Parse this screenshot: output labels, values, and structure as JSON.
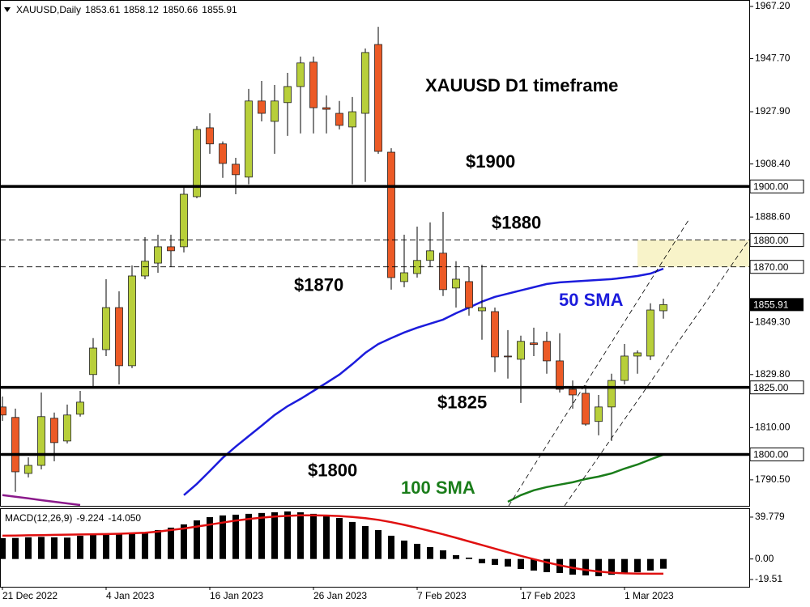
{
  "chart_data": [
    {
      "type": "candlestick",
      "symbol": "XAUUSD,Daily",
      "title": "XAUUSD D1 timeframe",
      "categories": [
        "21 Dec 2022",
        null,
        null,
        null,
        null,
        null,
        null,
        null,
        "4 Jan 2023",
        null,
        null,
        null,
        null,
        null,
        null,
        null,
        "16 Jan 2023",
        null,
        null,
        null,
        null,
        null,
        null,
        null,
        "26 Jan 2023",
        null,
        null,
        null,
        null,
        null,
        null,
        null,
        "7 Feb 2023",
        null,
        null,
        null,
        null,
        null,
        null,
        null,
        "17 Feb 2023",
        null,
        null,
        null,
        null,
        null,
        null,
        null,
        "1 Mar 2023",
        null,
        null,
        null
      ],
      "open": [
        1817.7,
        1813.8,
        1792.9,
        1795.9,
        1813.5,
        1805.0,
        1815.0,
        1829.8,
        1839.1,
        1854.8,
        1833.1,
        1866.6,
        1871.4,
        1877.5,
        1877.5,
        1896.2,
        1921.9,
        1915.9,
        1908.3,
        1903.5,
        1931.9,
        1924.3,
        1931.3,
        1937.3,
        1946.4,
        1929.4,
        1927.3,
        1922.2,
        1927.3,
        1953.0,
        1912.8,
        1864.5,
        1867.5,
        1872.4,
        1875.1,
        1862.1,
        1864.5,
        1853.6,
        1853.3,
        1836.7,
        1835.5,
        1841.6,
        1842.2,
        1834.9,
        1824.3,
        1822.8,
        1812.3,
        1817.7,
        1827.6,
        1836.7,
        1836.7,
        1853.61
      ],
      "high": [
        1821.6,
        1817.1,
        1798.9,
        1823.1,
        1815.6,
        1818.6,
        1823.7,
        1843.4,
        1865.4,
        1860.9,
        1870.5,
        1881.1,
        1882.0,
        1882.0,
        1900.1,
        1922.5,
        1927.3,
        1916.8,
        1910.7,
        1936.4,
        1939.4,
        1937.9,
        1942.4,
        1948.5,
        1948.5,
        1934.0,
        1931.9,
        1933.4,
        1951.5,
        1959.6,
        1914.3,
        1882.0,
        1885.0,
        1886.6,
        1890.5,
        1872.1,
        1869.9,
        1870.8,
        1854.8,
        1846.4,
        1844.3,
        1847.3,
        1845.8,
        1845.2,
        1827.6,
        1825.8,
        1822.2,
        1830.1,
        1841.2,
        1838.8,
        1856.4,
        1858.12
      ],
      "low": [
        1812.5,
        1786.0,
        1791.4,
        1794.4,
        1797.4,
        1804.1,
        1814.1,
        1825.2,
        1836.7,
        1826.1,
        1832.2,
        1865.4,
        1867.8,
        1869.9,
        1875.4,
        1895.6,
        1912.2,
        1903.2,
        1897.1,
        1900.8,
        1924.3,
        1912.2,
        1918.9,
        1919.8,
        1919.8,
        1919.8,
        1921.3,
        1900.8,
        1901.7,
        1912.2,
        1861.5,
        1862.4,
        1866.0,
        1869.9,
        1859.1,
        1854.8,
        1851.8,
        1842.8,
        1830.7,
        1828.3,
        1819.2,
        1836.7,
        1830.1,
        1823.1,
        1817.1,
        1810.7,
        1807.1,
        1805.0,
        1826.1,
        1830.1,
        1835.2,
        1850.66
      ],
      "close": [
        1814.7,
        1793.5,
        1795.9,
        1814.1,
        1804.4,
        1814.7,
        1819.5,
        1839.7,
        1854.8,
        1833.1,
        1866.6,
        1872.1,
        1877.5,
        1876.0,
        1897.1,
        1921.3,
        1915.9,
        1908.6,
        1904.4,
        1931.9,
        1927.3,
        1931.9,
        1937.3,
        1946.1,
        1929.4,
        1928.8,
        1922.8,
        1927.9,
        1950.0,
        1913.1,
        1866.0,
        1867.8,
        1872.4,
        1876.0,
        1861.5,
        1865.4,
        1854.8,
        1854.8,
        1836.4,
        1836.4,
        1842.2,
        1841.0,
        1834.9,
        1824.3,
        1822.2,
        1811.3,
        1817.7,
        1827.6,
        1836.7,
        1837.9,
        1853.9,
        1855.91
      ],
      "up_color": "#b8cf3a",
      "down_color": "#ec5a26",
      "lines": [
        {
          "name": "50 SMA",
          "color": "#1c1cdc",
          "values": [
            null,
            null,
            null,
            null,
            null,
            null,
            null,
            null,
            null,
            null,
            null,
            null,
            null,
            null,
            1784.8,
            1789.0,
            1793.8,
            1798.7,
            1802.9,
            1806.8,
            1810.7,
            1814.7,
            1818.0,
            1820.7,
            1823.7,
            1826.7,
            1829.8,
            1833.7,
            1837.9,
            1841.2,
            1843.4,
            1845.5,
            1847.3,
            1848.8,
            1850.3,
            1852.7,
            1854.8,
            1857.0,
            1858.8,
            1860.0,
            1861.2,
            1862.4,
            1863.6,
            1864.2,
            1864.5,
            1864.8,
            1865.1,
            1865.4,
            1866.0,
            1866.6,
            1867.5,
            1869.3
          ]
        },
        {
          "name": "100 SMA",
          "color": "#1a7d1a",
          "values": [
            null,
            null,
            null,
            null,
            null,
            null,
            null,
            null,
            null,
            null,
            null,
            null,
            null,
            null,
            null,
            null,
            null,
            null,
            null,
            null,
            null,
            null,
            null,
            null,
            null,
            null,
            null,
            null,
            null,
            null,
            null,
            null,
            null,
            null,
            null,
            null,
            null,
            null,
            null,
            1782.3,
            1784.8,
            1786.6,
            1787.8,
            1788.7,
            1789.6,
            1790.8,
            1791.7,
            1792.9,
            1794.7,
            1796.2,
            1798.1,
            1799.9
          ]
        },
        {
          "color": "#8b1a8b",
          "values": [
            1784.8,
            1784.2,
            1783.6,
            1782.9,
            1782.3,
            1781.7,
            1781.1,
            null,
            null,
            null,
            null,
            null,
            null,
            null,
            null,
            null,
            null,
            null,
            null,
            null,
            null,
            null,
            null,
            null,
            null,
            null,
            null,
            null,
            null,
            null,
            null,
            null,
            null,
            null,
            null,
            null,
            null,
            null,
            null,
            null,
            null,
            null,
            null,
            null,
            null,
            null,
            null,
            null,
            null,
            null,
            null,
            null
          ]
        }
      ],
      "levels": [
        {
          "value": 1900,
          "label": "$1900",
          "axis_label": "1900.00",
          "style": "solid"
        },
        {
          "value": 1880,
          "label": "$1880",
          "axis_label": "1880.00",
          "style": "dashed"
        },
        {
          "value": 1870,
          "label": "$1870",
          "axis_label": "1870.00",
          "style": "dashed"
        },
        {
          "value": 1825,
          "label": "$1825",
          "axis_label": "1825.00",
          "style": "solid"
        },
        {
          "value": 1800,
          "label": "$1800",
          "axis_label": "1800.00",
          "style": "solid"
        }
      ],
      "zone_color": "#f8f3c9",
      "ylim": [
        1780.8,
        1969.6
      ],
      "yticks": [
        {
          "value": 1967.2,
          "label": "1967.20"
        },
        {
          "value": 1947.7,
          "label": "1947.70"
        },
        {
          "value": 1927.9,
          "label": "1927.90"
        },
        {
          "value": 1908.4,
          "label": "1908.40"
        },
        {
          "value": 1888.6,
          "label": "1888.60"
        },
        {
          "value": 1849.3,
          "label": "1849.30"
        },
        {
          "value": 1829.8,
          "label": "1829.80"
        },
        {
          "value": 1810,
          "label": "1810.00"
        },
        {
          "value": 1790.5,
          "label": "1790.50"
        }
      ]
    },
    {
      "type": "macd",
      "title": "MACD(12,26,9)",
      "color": "#000000",
      "values": [
        19.8,
        20.0,
        20.6,
        21.0,
        20.6,
        20.3,
        22.1,
        22.9,
        23.6,
        23.6,
        23.6,
        24.4,
        27.5,
        29.8,
        32.9,
        36.7,
        39.8,
        41.4,
        42.1,
        42.9,
        43.7,
        44.4,
        45.2,
        44.4,
        42.9,
        41.4,
        39.0,
        35.2,
        31.3,
        27.5,
        22.1,
        17.5,
        14.4,
        11.3,
        8.2,
        3.6,
        1.3,
        -4.1,
        -5.6,
        -7.2,
        -9.5,
        -11.0,
        -12.5,
        -13.3,
        -14.9,
        -15.6,
        -16.4,
        -15.0,
        -14.0,
        -12.6,
        -11.0,
        -9.224
      ],
      "signal": {
        "color": "#e01010",
        "values": [
          22.1,
          22.3,
          22.5,
          22.7,
          22.9,
          23.1,
          23.3,
          23.5,
          23.7,
          24.0,
          24.4,
          25.0,
          26.0,
          27.5,
          29.0,
          30.8,
          32.7,
          34.6,
          36.5,
          38.0,
          39.3,
          40.3,
          41.0,
          41.4,
          41.5,
          41.3,
          40.8,
          40.0,
          38.8,
          37.2,
          35.0,
          32.4,
          29.6,
          26.6,
          23.4,
          20.1,
          16.7,
          13.3,
          9.8,
          6.4,
          3.0,
          -0.2,
          -3.2,
          -6.0,
          -8.4,
          -10.4,
          -11.9,
          -13.0,
          -13.6,
          -13.9,
          -14.0,
          -14.05
        ],
        "value_labels": [
          null,
          null,
          null,
          null,
          null,
          null,
          null,
          null,
          null,
          null,
          null,
          null,
          null,
          null,
          null,
          null,
          null,
          null,
          null,
          null,
          null,
          null,
          null,
          null,
          null,
          null,
          null,
          null,
          null,
          null,
          null,
          null,
          null,
          null,
          null,
          null,
          null,
          null,
          null,
          null,
          null,
          null,
          null,
          null,
          null,
          null,
          null,
          null,
          null,
          null,
          null,
          "-14.050"
        ]
      },
      "ylim": [
        -26.4,
        48.2
      ],
      "yticks": [
        {
          "value": 39.779,
          "label": "39.779"
        },
        {
          "value": 0,
          "label": "0.00"
        },
        -19.51
      ]
    }
  ]
}
